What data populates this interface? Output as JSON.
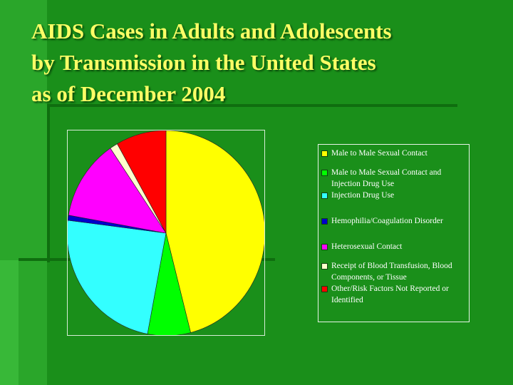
{
  "slide": {
    "title_lines": [
      "AIDS Cases in Adults and Adolescents",
      "by Transmission in the United States",
      "as of December 2004"
    ]
  },
  "chart_data": {
    "type": "pie",
    "title": "AIDS Cases in Adults and Adolescents by Transmission in the United States as of December 2004",
    "slices": [
      {
        "label": "Male to Male Sexual Contact",
        "value": 46.0,
        "color": "#ffff00"
      },
      {
        "label": "Male to Male Sexual Contact and Injection Drug Use",
        "value": 7.0,
        "color": "#00ff00"
      },
      {
        "label": "Injection Drug Use",
        "value": 24.0,
        "color": "#33ffff"
      },
      {
        "label": "Hemophilia/Coagulation Disorder",
        "value": 0.8,
        "color": "#0000cc"
      },
      {
        "label": "Heterosexual Contact",
        "value": 12.7,
        "color": "#ff00ff"
      },
      {
        "label": "Receipt of Blood Transfusion, Blood Components, or Tissue",
        "value": 1.3,
        "color": "#ffffcc"
      },
      {
        "label": "Other/Risk Factors Not Reported or Identified",
        "value": 8.2,
        "color": "#ff0000"
      }
    ],
    "legend_position": "right"
  }
}
